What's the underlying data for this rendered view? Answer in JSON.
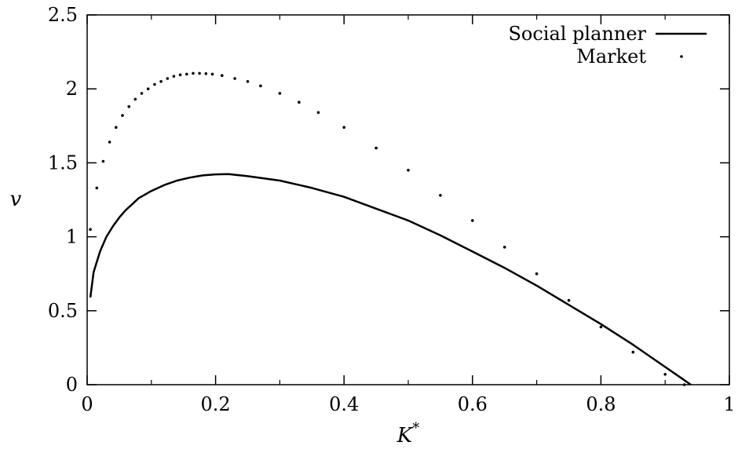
{
  "chart_data": {
    "type": "line",
    "title": "",
    "xlabel": "K",
    "xlabel_sup": "*",
    "ylabel": "v",
    "xlim": [
      0,
      1
    ],
    "ylim": [
      0,
      2.5
    ],
    "xticks": [
      0,
      0.2,
      0.4,
      0.6,
      0.8,
      1
    ],
    "xtick_labels": [
      "0",
      "0.2",
      "0.4",
      "0.6",
      "0.8",
      "1"
    ],
    "yticks": [
      0,
      0.5,
      1,
      1.5,
      2,
      2.5
    ],
    "ytick_labels": [
      "0",
      "0.5",
      "1",
      "1.5",
      "2",
      "2.5"
    ],
    "minor_x_step": 0.1,
    "grid": false,
    "legend_position": "top-right",
    "series": [
      {
        "name": "Social planner",
        "style": "solid",
        "color": "#000000",
        "x": [
          0.005,
          0.01,
          0.02,
          0.03,
          0.04,
          0.05,
          0.06,
          0.07,
          0.08,
          0.1,
          0.12,
          0.14,
          0.16,
          0.18,
          0.2,
          0.22,
          0.25,
          0.3,
          0.35,
          0.4,
          0.45,
          0.5,
          0.55,
          0.6,
          0.65,
          0.7,
          0.75,
          0.8,
          0.85,
          0.9,
          0.92,
          0.94
        ],
        "y": [
          0.59,
          0.76,
          0.9,
          1.0,
          1.07,
          1.13,
          1.18,
          1.22,
          1.26,
          1.31,
          1.35,
          1.38,
          1.4,
          1.415,
          1.422,
          1.424,
          1.41,
          1.38,
          1.33,
          1.27,
          1.19,
          1.11,
          1.01,
          0.9,
          0.79,
          0.67,
          0.54,
          0.41,
          0.27,
          0.12,
          0.06,
          0.0
        ]
      },
      {
        "name": "Market",
        "style": "dotted",
        "color": "#000000",
        "x": [
          0.005,
          0.015,
          0.025,
          0.035,
          0.045,
          0.055,
          0.065,
          0.075,
          0.085,
          0.095,
          0.105,
          0.115,
          0.125,
          0.135,
          0.145,
          0.155,
          0.165,
          0.175,
          0.185,
          0.195,
          0.21,
          0.23,
          0.25,
          0.27,
          0.3,
          0.33,
          0.36,
          0.4,
          0.45,
          0.5,
          0.55,
          0.6,
          0.65,
          0.7,
          0.75,
          0.8,
          0.85,
          0.9,
          0.93
        ],
        "y": [
          1.05,
          1.33,
          1.51,
          1.64,
          1.74,
          1.82,
          1.88,
          1.93,
          1.97,
          2.0,
          2.03,
          2.05,
          2.07,
          2.085,
          2.095,
          2.1,
          2.105,
          2.105,
          2.103,
          2.1,
          2.09,
          2.07,
          2.05,
          2.02,
          1.97,
          1.91,
          1.84,
          1.74,
          1.6,
          1.45,
          1.28,
          1.11,
          0.93,
          0.75,
          0.57,
          0.39,
          0.22,
          0.07,
          0.0
        ]
      }
    ]
  }
}
